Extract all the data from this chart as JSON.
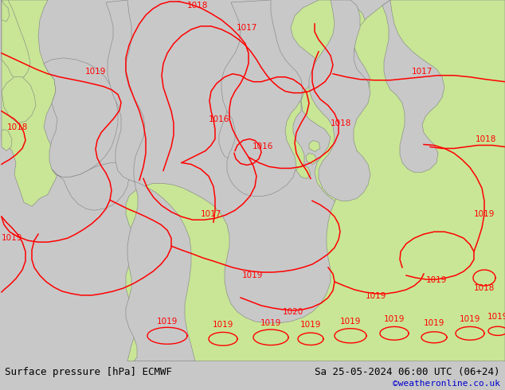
{
  "title_left": "Surface pressure [hPa] ECMWF",
  "title_right": "Sa 25-05-2024 06:00 UTC (06+24)",
  "copyright": "©weatheronline.co.uk",
  "land_color": "#c8e696",
  "sea_color": "#c8c8c8",
  "contour_color": "#ff0000",
  "coast_color": "#808080",
  "bottom_bar_color": "#ffffff",
  "text_color": "#000000",
  "copyright_color": "#0000cc",
  "figsize": [
    6.34,
    4.9
  ],
  "dpi": 100,
  "bottom_bar_height": 0.074,
  "label_fontsize": 9,
  "copyright_fontsize": 8
}
